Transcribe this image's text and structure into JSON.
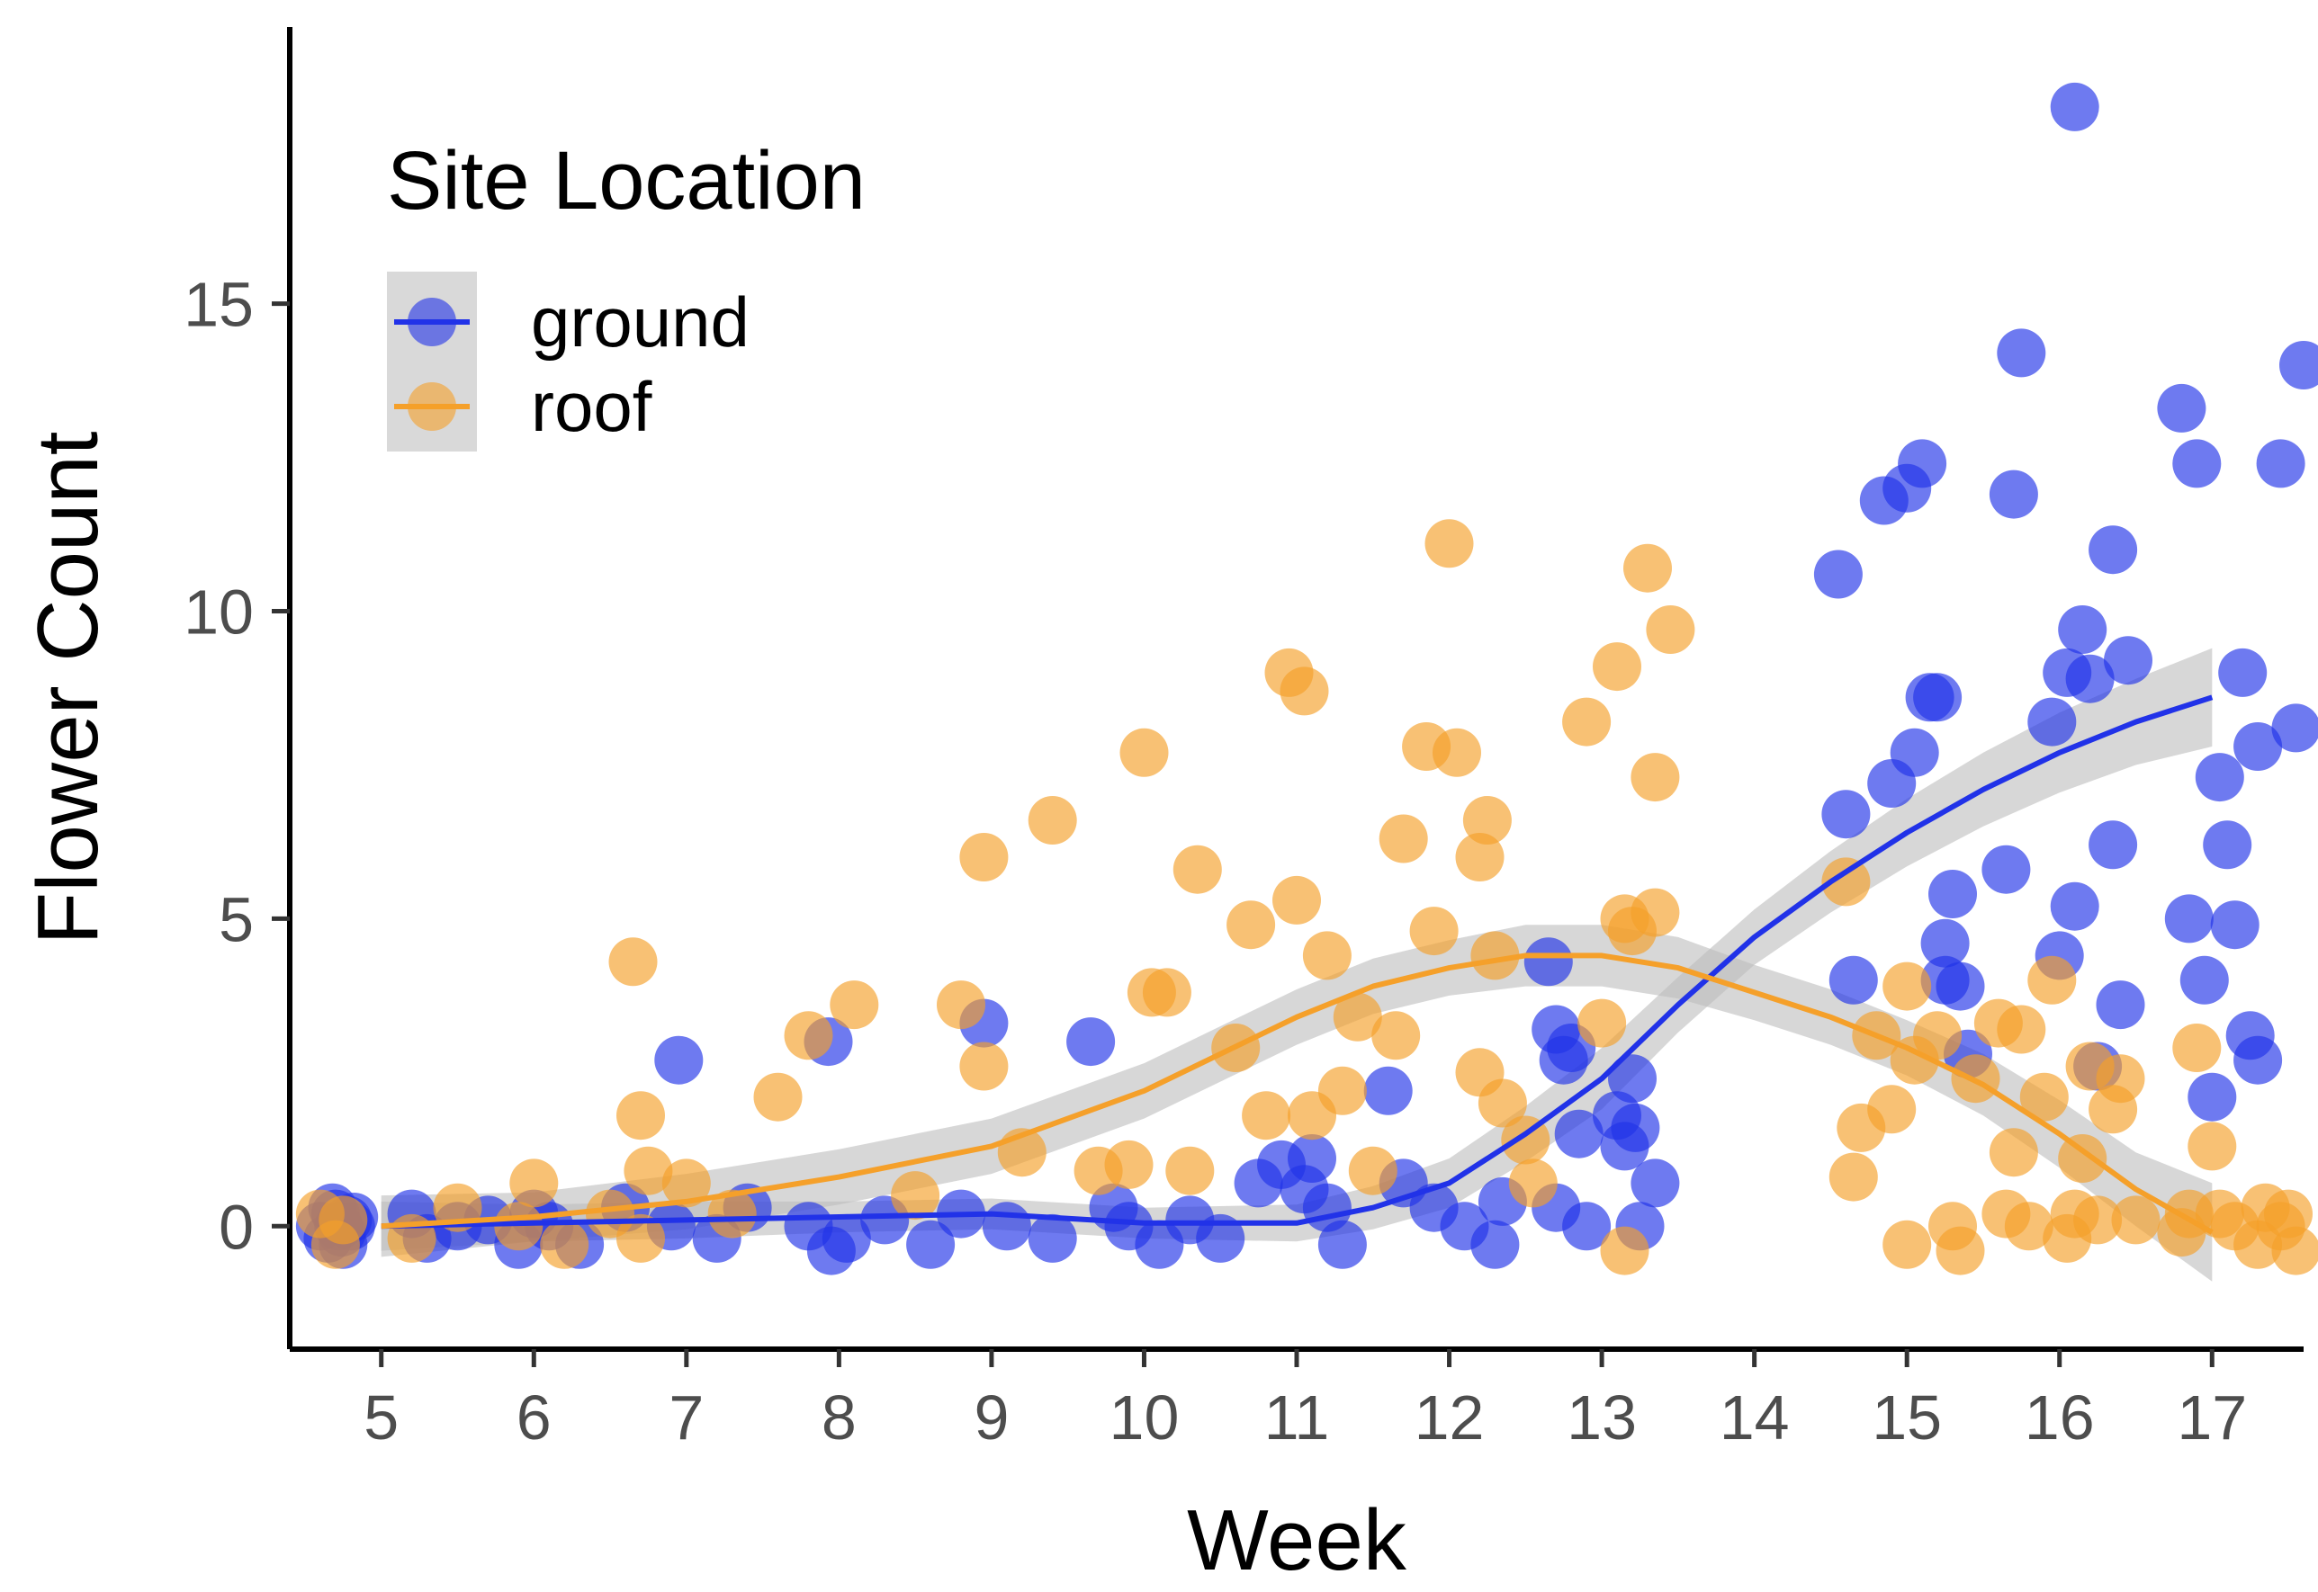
{
  "chart_data": {
    "type": "scatter",
    "title": "",
    "xlabel": "Week",
    "ylabel": "Flower Count",
    "xlim": [
      4.4,
      17.6
    ],
    "ylim": [
      -2,
      19.5
    ],
    "x_ticks": [
      "5",
      "6",
      "7",
      "8",
      "9",
      "10",
      "11",
      "12",
      "13",
      "14",
      "15",
      "16",
      "17"
    ],
    "y_ticks": [
      "0",
      "5",
      "10",
      "15"
    ],
    "grid": false,
    "legend": {
      "title": "Site Location",
      "placement": "top-left",
      "entries": [
        "ground",
        "roof"
      ]
    },
    "colors": {
      "ground": "#2132e8",
      "roof": "#f5a02a",
      "band": "#bdbdbd"
    },
    "series": [
      {
        "name": "ground",
        "points": [
          [
            4.6,
            0
          ],
          [
            4.65,
            -0.2
          ],
          [
            4.7,
            0.2
          ],
          [
            4.72,
            0
          ],
          [
            4.75,
            -0.3
          ],
          [
            4.78,
            0.1
          ],
          [
            4.8,
            0
          ],
          [
            4.68,
            0.3
          ],
          [
            4.74,
            -0.1
          ],
          [
            4.82,
            0.15
          ],
          [
            5.2,
            0.2
          ],
          [
            5.3,
            -0.2
          ],
          [
            5.5,
            0
          ],
          [
            5.7,
            0.1
          ],
          [
            5.9,
            -0.3
          ],
          [
            6.0,
            0.2
          ],
          [
            6.1,
            0
          ],
          [
            6.3,
            -0.3
          ],
          [
            6.6,
            0.3
          ],
          [
            6.9,
            0
          ],
          [
            6.95,
            2.7
          ],
          [
            7.2,
            -0.2
          ],
          [
            7.4,
            0.3
          ],
          [
            7.8,
            0
          ],
          [
            7.95,
            -0.4
          ],
          [
            8.05,
            -0.2
          ],
          [
            7.93,
            3.0
          ],
          [
            8.3,
            0.1
          ],
          [
            8.6,
            -0.3
          ],
          [
            8.8,
            0.2
          ],
          [
            8.95,
            3.3
          ],
          [
            9.1,
            0
          ],
          [
            9.4,
            -0.2
          ],
          [
            9.65,
            3.0
          ],
          [
            9.8,
            0.3
          ],
          [
            9.9,
            0
          ],
          [
            10.1,
            -0.3
          ],
          [
            10.3,
            0.1
          ],
          [
            10.5,
            -0.2
          ],
          [
            10.75,
            0.7
          ],
          [
            10.9,
            1.0
          ],
          [
            11.05,
            0.6
          ],
          [
            11.1,
            1.1
          ],
          [
            11.2,
            0.3
          ],
          [
            11.3,
            -0.3
          ],
          [
            11.6,
            2.2
          ],
          [
            11.7,
            0.7
          ],
          [
            11.9,
            0.3
          ],
          [
            12.1,
            0
          ],
          [
            12.3,
            -0.3
          ],
          [
            12.35,
            0.4
          ],
          [
            12.65,
            4.3
          ],
          [
            12.7,
            3.2
          ],
          [
            12.75,
            2.7
          ],
          [
            12.8,
            2.9
          ],
          [
            12.85,
            1.5
          ],
          [
            12.7,
            0.3
          ],
          [
            12.9,
            0
          ],
          [
            13.1,
            1.8
          ],
          [
            13.15,
            1.3
          ],
          [
            13.2,
            2.4
          ],
          [
            13.22,
            1.6
          ],
          [
            13.25,
            0
          ],
          [
            13.35,
            0.7
          ],
          [
            14.55,
            10.6
          ],
          [
            14.65,
            4.0
          ],
          [
            14.6,
            6.7
          ],
          [
            14.85,
            11.8
          ],
          [
            14.9,
            7.2
          ],
          [
            15.0,
            12.0
          ],
          [
            15.05,
            7.7
          ],
          [
            15.1,
            12.4
          ],
          [
            15.15,
            8.6
          ],
          [
            15.2,
            8.6
          ],
          [
            15.25,
            4.6
          ],
          [
            15.3,
            5.4
          ],
          [
            15.25,
            4.0
          ],
          [
            15.35,
            3.9
          ],
          [
            15.4,
            2.8
          ],
          [
            15.7,
            11.9
          ],
          [
            15.75,
            14.2
          ],
          [
            15.65,
            5.8
          ],
          [
            15.95,
            8.2
          ],
          [
            16.05,
            9.0
          ],
          [
            16.1,
            18.2
          ],
          [
            16.15,
            9.7
          ],
          [
            16.2,
            8.9
          ],
          [
            16.1,
            5.2
          ],
          [
            16.0,
            4.4
          ],
          [
            16.25,
            2.6
          ],
          [
            16.35,
            11.0
          ],
          [
            16.45,
            9.2
          ],
          [
            16.35,
            6.2
          ],
          [
            16.4,
            3.6
          ],
          [
            16.8,
            13.3
          ],
          [
            16.9,
            12.4
          ],
          [
            16.85,
            5.0
          ],
          [
            16.95,
            4.0
          ],
          [
            17.0,
            2.1
          ],
          [
            17.05,
            7.3
          ],
          [
            17.1,
            6.2
          ],
          [
            17.15,
            4.9
          ],
          [
            17.2,
            9.0
          ],
          [
            17.25,
            3.1
          ],
          [
            17.3,
            7.8
          ],
          [
            17.3,
            2.7
          ],
          [
            17.45,
            12.4
          ],
          [
            17.55,
            8.1
          ],
          [
            17.6,
            14.0
          ]
        ]
      },
      {
        "name": "roof",
        "points": [
          [
            4.6,
            0.2
          ],
          [
            4.7,
            -0.3
          ],
          [
            4.75,
            0.1
          ],
          [
            5.2,
            -0.2
          ],
          [
            5.5,
            0.3
          ],
          [
            5.9,
            0
          ],
          [
            6.0,
            0.7
          ],
          [
            6.2,
            -0.3
          ],
          [
            6.5,
            0.2
          ],
          [
            6.65,
            4.3
          ],
          [
            6.7,
            1.8
          ],
          [
            6.75,
            0.9
          ],
          [
            6.7,
            -0.2
          ],
          [
            7.0,
            0.7
          ],
          [
            7.3,
            0.2
          ],
          [
            7.6,
            2.1
          ],
          [
            7.8,
            3.1
          ],
          [
            8.1,
            3.6
          ],
          [
            8.5,
            0.5
          ],
          [
            8.8,
            3.6
          ],
          [
            8.95,
            6.0
          ],
          [
            8.95,
            2.6
          ],
          [
            9.2,
            1.2
          ],
          [
            9.4,
            6.6
          ],
          [
            9.7,
            0.9
          ],
          [
            9.9,
            1.0
          ],
          [
            10.0,
            7.7
          ],
          [
            10.05,
            3.8
          ],
          [
            10.15,
            3.8
          ],
          [
            10.3,
            0.9
          ],
          [
            10.35,
            5.8
          ],
          [
            10.6,
            2.9
          ],
          [
            10.7,
            4.9
          ],
          [
            10.8,
            1.8
          ],
          [
            10.95,
            9.0
          ],
          [
            11.0,
            5.3
          ],
          [
            11.05,
            8.7
          ],
          [
            11.1,
            1.8
          ],
          [
            11.2,
            4.4
          ],
          [
            11.3,
            2.2
          ],
          [
            11.4,
            3.4
          ],
          [
            11.5,
            0.9
          ],
          [
            11.65,
            3.1
          ],
          [
            11.7,
            6.3
          ],
          [
            11.85,
            7.8
          ],
          [
            11.9,
            4.8
          ],
          [
            12.0,
            11.1
          ],
          [
            12.05,
            7.7
          ],
          [
            12.2,
            6.0
          ],
          [
            12.25,
            6.6
          ],
          [
            12.2,
            2.5
          ],
          [
            12.3,
            4.4
          ],
          [
            12.35,
            2.0
          ],
          [
            12.5,
            1.4
          ],
          [
            12.55,
            0.7
          ],
          [
            12.9,
            8.2
          ],
          [
            13.0,
            3.3
          ],
          [
            13.1,
            9.1
          ],
          [
            13.15,
            5.0
          ],
          [
            13.2,
            4.8
          ],
          [
            13.15,
            -0.4
          ],
          [
            13.3,
            10.7
          ],
          [
            13.35,
            5.1
          ],
          [
            13.35,
            7.3
          ],
          [
            13.45,
            9.7
          ],
          [
            14.6,
            5.6
          ],
          [
            14.65,
            0.8
          ],
          [
            14.7,
            1.6
          ],
          [
            14.8,
            3.1
          ],
          [
            14.9,
            1.9
          ],
          [
            15.0,
            -0.3
          ],
          [
            15.0,
            3.9
          ],
          [
            15.05,
            2.7
          ],
          [
            15.2,
            3.1
          ],
          [
            15.3,
            0
          ],
          [
            15.35,
            -0.4
          ],
          [
            15.45,
            2.4
          ],
          [
            15.6,
            3.3
          ],
          [
            15.65,
            0.2
          ],
          [
            15.7,
            1.2
          ],
          [
            15.75,
            3.2
          ],
          [
            15.8,
            0
          ],
          [
            15.9,
            2.1
          ],
          [
            15.95,
            4.0
          ],
          [
            16.05,
            -0.2
          ],
          [
            16.1,
            0.2
          ],
          [
            16.15,
            1.1
          ],
          [
            16.2,
            2.6
          ],
          [
            16.25,
            0.1
          ],
          [
            16.35,
            1.9
          ],
          [
            16.4,
            2.4
          ],
          [
            16.5,
            0.1
          ],
          [
            16.8,
            -0.1
          ],
          [
            16.85,
            0.2
          ],
          [
            16.9,
            2.9
          ],
          [
            17.0,
            1.3
          ],
          [
            17.05,
            0.2
          ],
          [
            17.15,
            0
          ],
          [
            17.3,
            -0.3
          ],
          [
            17.35,
            0.3
          ],
          [
            17.45,
            0
          ],
          [
            17.5,
            0.2
          ],
          [
            17.55,
            -0.4
          ]
        ]
      }
    ],
    "smooth": [
      {
        "name": "ground",
        "points": [
          [
            5,
            0
          ],
          [
            6,
            0.05
          ],
          [
            7,
            0.1
          ],
          [
            8,
            0.15
          ],
          [
            9,
            0.2
          ],
          [
            10,
            0.05
          ],
          [
            11,
            0.05
          ],
          [
            11.5,
            0.3
          ],
          [
            12,
            0.7
          ],
          [
            12.5,
            1.5
          ],
          [
            13,
            2.4
          ],
          [
            13.5,
            3.6
          ],
          [
            14,
            4.7
          ],
          [
            14.5,
            5.6
          ],
          [
            15,
            6.4
          ],
          [
            15.5,
            7.1
          ],
          [
            16,
            7.7
          ],
          [
            16.5,
            8.2
          ],
          [
            17,
            8.6
          ]
        ],
        "se": [
          0.4,
          0.3,
          0.3,
          0.25,
          0.25,
          0.25,
          0.3,
          0.35,
          0.4,
          0.45,
          0.5,
          0.45,
          0.45,
          0.5,
          0.55,
          0.6,
          0.65,
          0.7,
          0.8
        ]
      },
      {
        "name": "roof",
        "points": [
          [
            5,
            0
          ],
          [
            6,
            0.15
          ],
          [
            7,
            0.4
          ],
          [
            8,
            0.8
          ],
          [
            9,
            1.3
          ],
          [
            10,
            2.2
          ],
          [
            10.5,
            2.8
          ],
          [
            11,
            3.4
          ],
          [
            11.5,
            3.9
          ],
          [
            12,
            4.2
          ],
          [
            12.5,
            4.4
          ],
          [
            13,
            4.4
          ],
          [
            13.5,
            4.2
          ],
          [
            14,
            3.8
          ],
          [
            14.5,
            3.4
          ],
          [
            15,
            2.9
          ],
          [
            15.5,
            2.3
          ],
          [
            16,
            1.5
          ],
          [
            16.5,
            0.6
          ],
          [
            17,
            -0.1
          ]
        ],
        "se": [
          0.5,
          0.4,
          0.45,
          0.45,
          0.45,
          0.45,
          0.45,
          0.45,
          0.45,
          0.45,
          0.5,
          0.5,
          0.5,
          0.45,
          0.45,
          0.45,
          0.5,
          0.55,
          0.6,
          0.8
        ]
      }
    ]
  }
}
